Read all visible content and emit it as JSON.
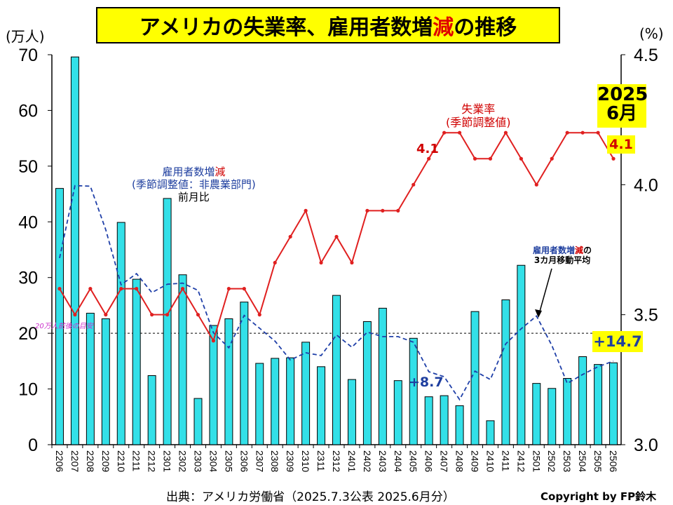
{
  "title": {
    "pre": "アメリカの失業率、雇用者数増",
    "red": "減",
    "post": "の推移"
  },
  "left_unit": "(万人)",
  "right_unit": "(%)",
  "source": "出典：アメリカ労働省（2025.7.3公表 2025.6月分）",
  "copyright": "Copyright by FP鈴木",
  "badge_month": {
    "year": "2025",
    "month": "6月"
  },
  "annotations": {
    "unemp_label": "失業率",
    "unemp_sub": "(季節調整値)",
    "payroll_pre": "雇用者数増",
    "payroll_red": "減",
    "payroll_sub": "(季節調整値：非農業部門)",
    "payroll_sub2": "前月比",
    "ma_pre": "雇用者数増",
    "ma_red": "減",
    "ma_post": "の",
    "ma_sub": "3カ月移動平均",
    "ref_line": "20万人前後の目安",
    "val_41_left": "4.1",
    "val_41_right": "4.1",
    "val_87": "+8.7",
    "val_147": "+14.7"
  },
  "colors": {
    "bar": "#33e0e8",
    "unemp": "#e02020",
    "ma": "#1f3fa8",
    "ref": "#000000",
    "ref_text": "#cc33cc"
  },
  "chart_data": {
    "type": "bar",
    "categories": [
      "2206",
      "2207",
      "2208",
      "2209",
      "2210",
      "2211",
      "2212",
      "2301",
      "2302",
      "2303",
      "2304",
      "2305",
      "2306",
      "2307",
      "2308",
      "2309",
      "2310",
      "2311",
      "2312",
      "2401",
      "2402",
      "2403",
      "2404",
      "2405",
      "2406",
      "2407",
      "2408",
      "2409",
      "2410",
      "2411",
      "2412",
      "2501",
      "2502",
      "2503",
      "2504",
      "2505",
      "2506"
    ],
    "series": [
      {
        "name": "雇用者数増減",
        "type": "bar",
        "axis": "left",
        "values": [
          46.0,
          69.6,
          23.6,
          22.6,
          39.9,
          29.7,
          12.4,
          44.2,
          30.5,
          8.3,
          21.4,
          22.6,
          25.6,
          14.6,
          15.5,
          15.6,
          18.4,
          14.0,
          26.8,
          11.7,
          22.1,
          24.5,
          11.5,
          19.1,
          8.6,
          8.8,
          7.0,
          23.9,
          4.3,
          26.0,
          32.2,
          11.0,
          10.1,
          11.9,
          15.8,
          14.4,
          14.7
        ]
      },
      {
        "name": "3カ月移動平均",
        "type": "line",
        "axis": "left",
        "values": [
          33.5,
          46.5,
          46.4,
          38.6,
          28.7,
          30.7,
          27.3,
          28.8,
          29.0,
          27.7,
          20.1,
          17.4,
          23.2,
          20.9,
          18.6,
          15.2,
          16.5,
          16.0,
          19.7,
          17.5,
          20.2,
          19.4,
          19.4,
          18.4,
          13.1,
          12.2,
          8.1,
          13.2,
          11.7,
          18.1,
          20.8,
          23.1,
          17.8,
          11.0,
          12.6,
          14.0,
          15.0
        ]
      },
      {
        "name": "失業率",
        "type": "line",
        "axis": "right",
        "values": [
          3.6,
          3.5,
          3.6,
          3.5,
          3.6,
          3.6,
          3.5,
          3.5,
          3.6,
          3.5,
          3.4,
          3.6,
          3.6,
          3.5,
          3.7,
          3.8,
          3.9,
          3.7,
          3.8,
          3.7,
          3.9,
          3.9,
          3.9,
          4.0,
          4.1,
          4.2,
          4.2,
          4.1,
          4.1,
          4.2,
          4.1,
          4.0,
          4.1,
          4.2,
          4.2,
          4.2,
          4.1
        ]
      }
    ],
    "y_left": {
      "ticks": [
        "0",
        "10",
        "20",
        "30",
        "40",
        "50",
        "60",
        "70"
      ],
      "ylim": [
        0,
        70
      ]
    },
    "y_right": {
      "ticks": [
        "3.0",
        "3.5",
        "4.0",
        "4.5"
      ],
      "ylim": [
        3.0,
        4.5
      ]
    },
    "reference_line": {
      "value": 20
    },
    "grid": false
  }
}
